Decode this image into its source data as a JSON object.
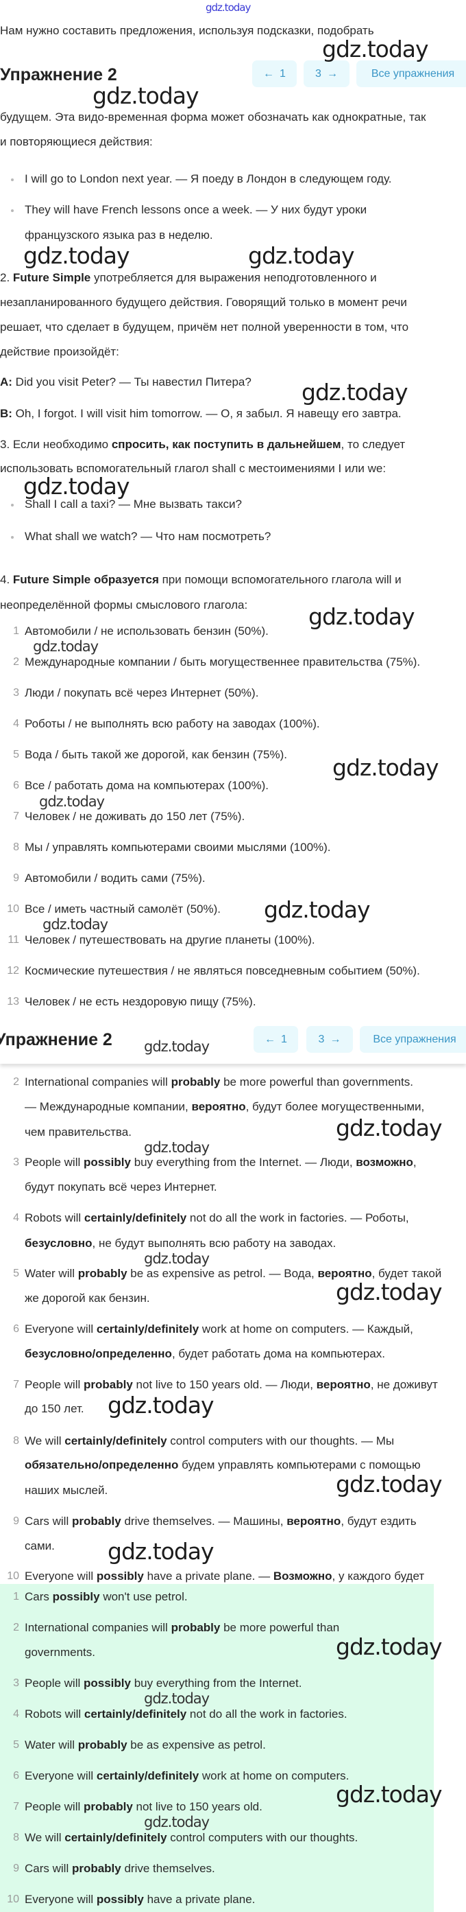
{
  "watermark": "gdz.today",
  "intro_fragment": "Нам нужно составить предложения, используя подсказки, подобрать",
  "header": {
    "title": "Упражнение 2",
    "prev_label": "1",
    "next_label": "3",
    "all_label": "Все упражнения",
    "prev_icon": "arrow-left-icon",
    "next_icon": "arrow-right-icon",
    "button_bg": "#e9f9fd",
    "button_text": "#3a96c6"
  },
  "theory": {
    "lines": [
      [
        {
          "t": "будущем. Эта видо-временная форма может обозначать как однократные, так"
        }
      ],
      [
        {
          "t": "и повторяющиеся действия:"
        }
      ],
      [
        {
          "t": "I will go to London next year. — Я поеду в Лондон в следующем году."
        }
      ],
      [
        {
          "t": "They will have French lessons once a week. — У них будут уроки"
        }
      ],
      [
        {
          "t": "французского языка раз в неделю."
        }
      ],
      [
        {
          "t": "2. "
        },
        {
          "t": "Future Simple",
          "b": true
        },
        {
          "t": " употребляется для выражения неподготовленного и"
        }
      ],
      [
        {
          "t": "незапланированного будущего действия. Говорящий только в момент речи"
        }
      ],
      [
        {
          "t": "решает, что сделает в будущем, причём нет полной уверенности в том, что"
        }
      ],
      [
        {
          "t": "действие произойдёт:"
        }
      ],
      [
        {
          "t": "A:",
          "b": true
        },
        {
          "t": " Did you visit Peter? — Ты навестил Питера?"
        }
      ],
      [
        {
          "t": "B:",
          "b": true
        },
        {
          "t": " Oh, I forgot. I will visit him tomorrow. — О, я забыл. Я навещу его завтра."
        }
      ],
      [
        {
          "t": "3. Если необходимо "
        },
        {
          "t": "спросить, как поступить в дальнейшем",
          "b": true
        },
        {
          "t": ", то следует"
        }
      ],
      [
        {
          "t": "использовать вспомогательный глагол shall с местоимениями I или we:"
        }
      ],
      [
        {
          "t": "Shall I call a taxi? — Мне вызвать такси?"
        }
      ],
      [
        {
          "t": "What shall we watch? — Что нам посмотреть?"
        }
      ],
      [
        {
          "t": "4. "
        },
        {
          "t": "Future Simple образуется",
          "b": true
        },
        {
          "t": " при помощи вспомогательного глагола will и"
        }
      ],
      [
        {
          "t": "неопределённой формы смыслового глагола:"
        }
      ]
    ]
  },
  "tasks": [
    "Автомобили / не использовать бензин (50%).",
    "Международные компании / быть могущественнее правительства (75%).",
    "Люди / покупать всё через Интернет (50%).",
    "Роботы / не выполнять всю работу на заводах (100%).",
    "Вода / быть такой же дорогой, как бензин (75%).",
    "Все / работать дома на компьютерах (100%).",
    "Человек / не доживать до 150 лет (75%).",
    "Мы / управлять компьютерами своими мыслями (100%).",
    "Автомобили / водить сами (75%).",
    "Все / иметь частный самолёт (50%).",
    "Человек / путешествовать на другие планеты (100%).",
    "Космические путешествия / не являться повседневным событием (50%).",
    "Человек / не есть нездоровую пищу (75%)."
  ],
  "translations": [
    {
      "num": "2",
      "lines": [
        [
          {
            "t": "International companies will "
          },
          {
            "t": "probably",
            "b": true
          },
          {
            "t": " be more powerful than governments."
          }
        ],
        [
          {
            "t": "— Международные компании, "
          },
          {
            "t": "вероятно",
            "b": true
          },
          {
            "t": ", будут более могущественными,"
          }
        ],
        [
          {
            "t": "чем правительства."
          }
        ]
      ]
    },
    {
      "num": "3",
      "lines": [
        [
          {
            "t": "People will "
          },
          {
            "t": "possibly",
            "b": true
          },
          {
            "t": " buy everything from the Internet. — Люди, "
          },
          {
            "t": "возможно",
            "b": true
          },
          {
            "t": ","
          }
        ],
        [
          {
            "t": "будут покупать всё через Интернет."
          }
        ]
      ]
    },
    {
      "num": "4",
      "lines": [
        [
          {
            "t": "Robots will "
          },
          {
            "t": "certainly/definitely",
            "b": true
          },
          {
            "t": " not do all the work in factories. — Роботы,"
          }
        ],
        [
          {
            "t": "безусловно",
            "b": true
          },
          {
            "t": ", не будут выполнять всю работу на заводах."
          }
        ]
      ]
    },
    {
      "num": "5",
      "lines": [
        [
          {
            "t": "Water will "
          },
          {
            "t": "probably",
            "b": true
          },
          {
            "t": " be as expensive as petrol. — Вода, "
          },
          {
            "t": "вероятно",
            "b": true
          },
          {
            "t": ", будет такой"
          }
        ],
        [
          {
            "t": "же дорогой как бензин."
          }
        ]
      ]
    },
    {
      "num": "6",
      "lines": [
        [
          {
            "t": "Everyone will "
          },
          {
            "t": "certainly/definitely",
            "b": true
          },
          {
            "t": " work at home on computers. — Каждый,"
          }
        ],
        [
          {
            "t": "безусловно/определенно",
            "b": true
          },
          {
            "t": ", будет работать дома на компьютерах."
          }
        ]
      ]
    },
    {
      "num": "7",
      "lines": [
        [
          {
            "t": "People will "
          },
          {
            "t": "probably",
            "b": true
          },
          {
            "t": " not live to 150 years old. — Люди, "
          },
          {
            "t": "вероятно",
            "b": true
          },
          {
            "t": ", не доживут"
          }
        ],
        [
          {
            "t": "до 150 лет."
          }
        ]
      ]
    },
    {
      "num": "8",
      "lines": [
        [
          {
            "t": "We will "
          },
          {
            "t": "certainly/definitely",
            "b": true
          },
          {
            "t": " control computers with our thoughts. — Мы"
          }
        ],
        [
          {
            "t": "обязательно/определенно",
            "b": true
          },
          {
            "t": " будем управлять компьютерами с помощью"
          }
        ],
        [
          {
            "t": "наших мыслей."
          }
        ]
      ]
    },
    {
      "num": "9",
      "lines": [
        [
          {
            "t": "Cars will "
          },
          {
            "t": "probably",
            "b": true
          },
          {
            "t": " drive themselves. — Машины, "
          },
          {
            "t": "вероятно",
            "b": true
          },
          {
            "t": ", будут ездить"
          }
        ],
        [
          {
            "t": "сами."
          }
        ]
      ]
    },
    {
      "num": "10",
      "lines": [
        [
          {
            "t": "Everyone will "
          },
          {
            "t": "possibly",
            "b": true
          },
          {
            "t": " have a private plane. — "
          },
          {
            "t": "Возможно",
            "b": true
          },
          {
            "t": ", у каждого будет"
          }
        ]
      ]
    }
  ],
  "answers": {
    "highlight_color": "#dcfbea",
    "items": [
      {
        "num": "1",
        "lines": [
          [
            {
              "t": "Cars "
            },
            {
              "t": "possibly",
              "b": true
            },
            {
              "t": " won't use petrol."
            }
          ]
        ]
      },
      {
        "num": "2",
        "lines": [
          [
            {
              "t": "International companies will "
            },
            {
              "t": "probably",
              "b": true
            },
            {
              "t": " be more powerful than"
            }
          ],
          [
            {
              "t": "governments."
            }
          ]
        ]
      },
      {
        "num": "3",
        "lines": [
          [
            {
              "t": "People will "
            },
            {
              "t": "possibly",
              "b": true
            },
            {
              "t": " buy everything from the Internet."
            }
          ]
        ]
      },
      {
        "num": "4",
        "lines": [
          [
            {
              "t": "Robots will "
            },
            {
              "t": "certainly/definitely",
              "b": true
            },
            {
              "t": " not do all the work in factories."
            }
          ]
        ]
      },
      {
        "num": "5",
        "lines": [
          [
            {
              "t": "Water will "
            },
            {
              "t": "probably",
              "b": true
            },
            {
              "t": " be as expensive as petrol."
            }
          ]
        ]
      },
      {
        "num": "6",
        "lines": [
          [
            {
              "t": "Everyone will "
            },
            {
              "t": "certainly/definitely",
              "b": true
            },
            {
              "t": " work at home on computers."
            }
          ]
        ]
      },
      {
        "num": "7",
        "lines": [
          [
            {
              "t": "People will "
            },
            {
              "t": "probably",
              "b": true
            },
            {
              "t": " not live to 150 years old."
            }
          ]
        ]
      },
      {
        "num": "8",
        "lines": [
          [
            {
              "t": "We will "
            },
            {
              "t": "certainly/definitely",
              "b": true
            },
            {
              "t": " control computers with our thoughts."
            }
          ]
        ]
      },
      {
        "num": "9",
        "lines": [
          [
            {
              "t": "Cars will "
            },
            {
              "t": "probably",
              "b": true
            },
            {
              "t": " drive themselves."
            }
          ]
        ]
      },
      {
        "num": "10",
        "lines": [
          [
            {
              "t": "Everyone will "
            },
            {
              "t": "possibly",
              "b": true
            },
            {
              "t": " have a private plane."
            }
          ]
        ]
      }
    ]
  }
}
